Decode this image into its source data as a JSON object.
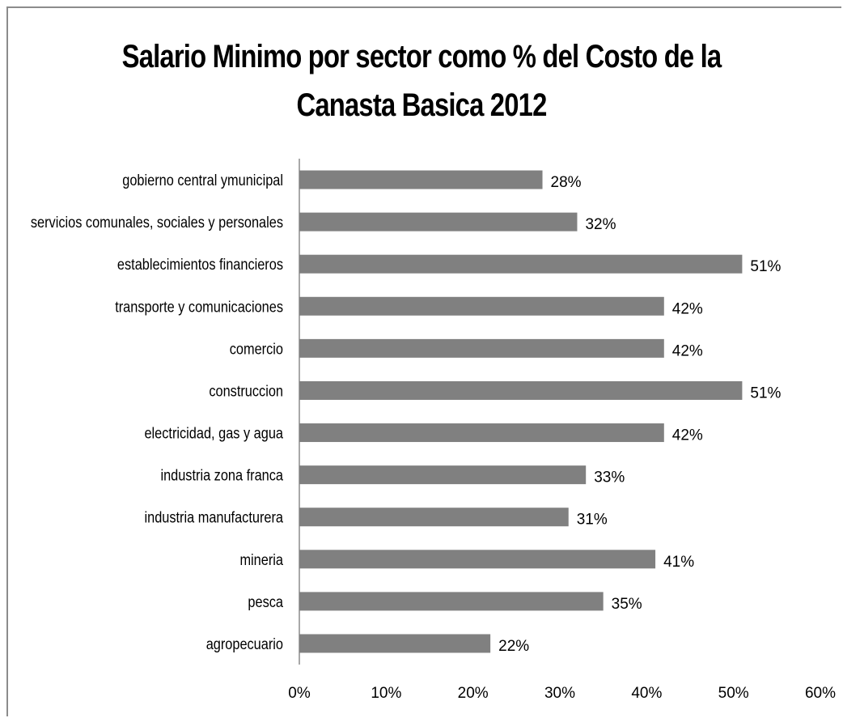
{
  "chart_data": {
    "type": "bar",
    "orientation": "horizontal",
    "title_lines": [
      "Salario Minimo por sector como % del Costo de la",
      "Canasta  Basica 2012"
    ],
    "categories": [
      "gobierno central ymunicipal",
      "servicios comunales, sociales y personales",
      "establecimientos financieros",
      "transporte y comunicaciones",
      "comercio",
      "construccion",
      "electricidad, gas y agua",
      "industria zona franca",
      "industria manufacturera",
      "mineria",
      "pesca",
      "agropecuario"
    ],
    "values": [
      28,
      32,
      51,
      42,
      42,
      51,
      42,
      33,
      31,
      41,
      35,
      22
    ],
    "data_labels": [
      "28%",
      "32%",
      "51%",
      "42%",
      "42%",
      "51%",
      "42%",
      "33%",
      "31%",
      "41%",
      "35%",
      "22%"
    ],
    "x_ticks": [
      "0%",
      "10%",
      "20%",
      "30%",
      "40%",
      "50%",
      "60%"
    ],
    "xlim": [
      0,
      60
    ],
    "grid": false,
    "legend": "none",
    "bar_color": "#808080",
    "axis_color": "#8c8c8c"
  }
}
